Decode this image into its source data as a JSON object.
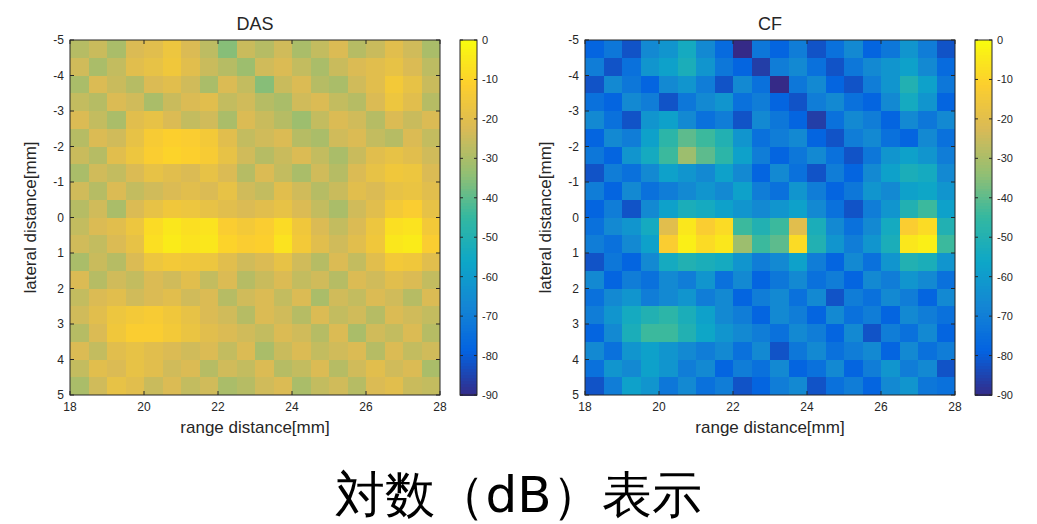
{
  "caption": "対数（dB）表示",
  "chart_data": [
    {
      "type": "heatmap",
      "title": "DAS",
      "x_label": "range distance[mm]",
      "y_label": "lateral distance[mm]",
      "xlim": [
        18,
        28
      ],
      "ylim": [
        -5,
        5
      ],
      "xticks": [
        18,
        20,
        22,
        24,
        26,
        28
      ],
      "yticks": [
        -5,
        -4,
        -3,
        -2,
        -1,
        0,
        1,
        2,
        3,
        4,
        5
      ],
      "color_range": [
        -90,
        0
      ],
      "color_ticks": [
        0,
        -10,
        -20,
        -30,
        -40,
        -50,
        -60,
        -70,
        -80,
        -90
      ],
      "x": [
        18.25,
        18.75,
        19.25,
        19.75,
        20.25,
        20.75,
        21.25,
        21.75,
        22.25,
        22.75,
        23.25,
        23.75,
        24.25,
        24.75,
        25.25,
        25.75,
        26.25,
        26.75,
        27.25,
        27.75
      ],
      "y": [
        -4.75,
        -4.25,
        -3.75,
        -3.25,
        -2.75,
        -2.25,
        -1.75,
        -1.25,
        -0.75,
        -0.25,
        0.25,
        0.75,
        1.25,
        1.75,
        2.25,
        2.75,
        3.25,
        3.75,
        4.25,
        4.75
      ],
      "values": [
        [
          -28,
          -25,
          -30,
          -22,
          -20,
          -16,
          -22,
          -27,
          -35,
          -25,
          -28,
          -24,
          -30,
          -26,
          -22,
          -28,
          -25,
          -20,
          -24,
          -30
        ],
        [
          -24,
          -30,
          -26,
          -20,
          -18,
          -15,
          -20,
          -25,
          -28,
          -32,
          -24,
          -22,
          -26,
          -30,
          -25,
          -22,
          -20,
          -18,
          -22,
          -27
        ],
        [
          -30,
          -22,
          -25,
          -28,
          -22,
          -20,
          -24,
          -30,
          -22,
          -26,
          -35,
          -25,
          -22,
          -28,
          -30,
          -24,
          -20,
          -14,
          -18,
          -25
        ],
        [
          -26,
          -28,
          -22,
          -24,
          -30,
          -25,
          -22,
          -20,
          -26,
          -24,
          -28,
          -30,
          -24,
          -22,
          -26,
          -28,
          -22,
          -16,
          -20,
          -28
        ],
        [
          -22,
          -26,
          -30,
          -20,
          -18,
          -22,
          -26,
          -24,
          -30,
          -22,
          -25,
          -28,
          -32,
          -26,
          -22,
          -24,
          -28,
          -22,
          -25,
          -22
        ],
        [
          -28,
          -22,
          -24,
          -18,
          -13,
          -11,
          -12,
          -14,
          -20,
          -26,
          -24,
          -22,
          -28,
          -30,
          -24,
          -22,
          -26,
          -28,
          -22,
          -26
        ],
        [
          -25,
          -28,
          -20,
          -16,
          -12,
          -10,
          -11,
          -13,
          -18,
          -24,
          -28,
          -25,
          -22,
          -26,
          -30,
          -25,
          -20,
          -18,
          -20,
          -24
        ],
        [
          -30,
          -24,
          -26,
          -22,
          -18,
          -20,
          -22,
          -18,
          -22,
          -28,
          -22,
          -26,
          -30,
          -24,
          -28,
          -22,
          -18,
          -15,
          -16,
          -22
        ],
        [
          -24,
          -28,
          -22,
          -26,
          -24,
          -22,
          -20,
          -22,
          -18,
          -24,
          -26,
          -20,
          -24,
          -28,
          -25,
          -20,
          -22,
          -18,
          -17,
          -20
        ],
        [
          -28,
          -24,
          -30,
          -22,
          -18,
          -15,
          -16,
          -18,
          -20,
          -22,
          -20,
          -18,
          -22,
          -26,
          -30,
          -24,
          -20,
          -14,
          -12,
          -18
        ],
        [
          -26,
          -22,
          -20,
          -16,
          -8,
          -5,
          -7,
          -6,
          -12,
          -14,
          -12,
          -8,
          -15,
          -22,
          -26,
          -22,
          -16,
          -7,
          -6,
          -14
        ],
        [
          -24,
          -26,
          -22,
          -18,
          -7,
          -4,
          -6,
          -5,
          -10,
          -12,
          -11,
          -6,
          -14,
          -20,
          -24,
          -20,
          -15,
          -5,
          -4,
          -12
        ],
        [
          -30,
          -25,
          -28,
          -22,
          -16,
          -14,
          -15,
          -16,
          -20,
          -24,
          -22,
          -18,
          -24,
          -28,
          -22,
          -26,
          -20,
          -14,
          -15,
          -20
        ],
        [
          -22,
          -28,
          -24,
          -26,
          -22,
          -24,
          -20,
          -26,
          -22,
          -28,
          -25,
          -22,
          -26,
          -24,
          -28,
          -22,
          -24,
          -20,
          -22,
          -26
        ],
        [
          -26,
          -22,
          -20,
          -24,
          -22,
          -20,
          -24,
          -22,
          -28,
          -24,
          -22,
          -26,
          -22,
          -30,
          -24,
          -26,
          -22,
          -24,
          -28,
          -22
        ],
        [
          -24,
          -20,
          -16,
          -14,
          -13,
          -15,
          -18,
          -22,
          -24,
          -28,
          -22,
          -24,
          -28,
          -22,
          -26,
          -24,
          -28,
          -22,
          -24,
          -26
        ],
        [
          -28,
          -22,
          -15,
          -12,
          -12,
          -14,
          -17,
          -20,
          -22,
          -24,
          -26,
          -22,
          -24,
          -28,
          -22,
          -30,
          -24,
          -26,
          -22,
          -28
        ],
        [
          -22,
          -26,
          -20,
          -18,
          -20,
          -22,
          -24,
          -22,
          -26,
          -22,
          -30,
          -25,
          -22,
          -26,
          -24,
          -22,
          -28,
          -22,
          -26,
          -24
        ],
        [
          -26,
          -20,
          -22,
          -18,
          -20,
          -24,
          -22,
          -28,
          -24,
          -26,
          -22,
          -28,
          -26,
          -22,
          -28,
          -24,
          -20,
          -24,
          -22,
          -30
        ],
        [
          -30,
          -24,
          -18,
          -20,
          -25,
          -22,
          -26,
          -24,
          -30,
          -28,
          -24,
          -22,
          -30,
          -26,
          -24,
          -28,
          -22,
          -20,
          -25,
          -26
        ]
      ]
    },
    {
      "type": "heatmap",
      "title": "CF",
      "x_label": "range distance[mm]",
      "y_label": "lateral distance[mm]",
      "xlim": [
        18,
        28
      ],
      "ylim": [
        -5,
        5
      ],
      "xticks": [
        18,
        20,
        22,
        24,
        26,
        28
      ],
      "yticks": [
        -5,
        -4,
        -3,
        -2,
        -1,
        0,
        1,
        2,
        3,
        4,
        5
      ],
      "color_range": [
        -90,
        0
      ],
      "color_ticks": [
        0,
        -10,
        -20,
        -30,
        -40,
        -50,
        -60,
        -70,
        -80,
        -90
      ],
      "x": [
        18.25,
        18.75,
        19.25,
        19.75,
        20.25,
        20.75,
        21.25,
        21.75,
        22.25,
        22.75,
        23.25,
        23.75,
        24.25,
        24.75,
        25.25,
        25.75,
        26.25,
        26.75,
        27.25,
        27.75
      ],
      "y": [
        -4.75,
        -4.25,
        -3.75,
        -3.25,
        -2.75,
        -2.25,
        -1.75,
        -1.25,
        -0.75,
        -0.25,
        0.25,
        0.75,
        1.25,
        1.75,
        2.25,
        2.75,
        3.25,
        3.75,
        4.25,
        4.75
      ],
      "values": [
        [
          -78,
          -72,
          -82,
          -66,
          -62,
          -54,
          -66,
          -76,
          -90,
          -72,
          -78,
          -70,
          -82,
          -74,
          -66,
          -78,
          -72,
          -62,
          -70,
          -82
        ],
        [
          -70,
          -82,
          -74,
          -62,
          -58,
          -52,
          -62,
          -72,
          -78,
          -86,
          -70,
          -66,
          -74,
          -82,
          -72,
          -66,
          -62,
          -58,
          -66,
          -76
        ],
        [
          -82,
          -66,
          -72,
          -78,
          -66,
          -62,
          -70,
          -82,
          -66,
          -74,
          -90,
          -72,
          -66,
          -78,
          -82,
          -70,
          -62,
          -50,
          -58,
          -72
        ],
        [
          -74,
          -78,
          -66,
          -70,
          -82,
          -72,
          -66,
          -62,
          -74,
          -70,
          -78,
          -82,
          -70,
          -66,
          -74,
          -78,
          -66,
          -54,
          -62,
          -78
        ],
        [
          -66,
          -74,
          -82,
          -62,
          -58,
          -66,
          -74,
          -70,
          -82,
          -66,
          -72,
          -78,
          -86,
          -74,
          -66,
          -70,
          -78,
          -66,
          -72,
          -66
        ],
        [
          -78,
          -66,
          -70,
          -58,
          -47,
          -40,
          -44,
          -50,
          -62,
          -74,
          -70,
          -66,
          -78,
          -82,
          -70,
          -66,
          -74,
          -78,
          -66,
          -74
        ],
        [
          -72,
          -78,
          -62,
          -54,
          -44,
          -32,
          -40,
          -47,
          -58,
          -70,
          -78,
          -72,
          -66,
          -74,
          -82,
          -72,
          -62,
          -58,
          -62,
          -70
        ],
        [
          -82,
          -70,
          -74,
          -66,
          -58,
          -62,
          -66,
          -58,
          -66,
          -78,
          -66,
          -74,
          -82,
          -70,
          -78,
          -66,
          -58,
          -52,
          -54,
          -66
        ],
        [
          -70,
          -78,
          -66,
          -74,
          -70,
          -66,
          -62,
          -66,
          -58,
          -70,
          -74,
          -62,
          -70,
          -78,
          -72,
          -62,
          -66,
          -58,
          -56,
          -62
        ],
        [
          -78,
          -70,
          -82,
          -66,
          -58,
          -52,
          -54,
          -58,
          -62,
          -66,
          -62,
          -58,
          -66,
          -74,
          -82,
          -70,
          -62,
          -50,
          -44,
          -58
        ],
        [
          -74,
          -66,
          -62,
          -54,
          -20,
          -5,
          -12,
          -8,
          -44,
          -50,
          -44,
          -20,
          -52,
          -66,
          -74,
          -66,
          -54,
          -12,
          -8,
          -50
        ],
        [
          -70,
          -74,
          -66,
          -58,
          -12,
          -3,
          -8,
          -5,
          -32,
          -44,
          -40,
          -8,
          -50,
          -62,
          -70,
          -62,
          -52,
          -5,
          -3,
          -44
        ],
        [
          -82,
          -72,
          -78,
          -66,
          -54,
          -50,
          -52,
          -54,
          -62,
          -70,
          -66,
          -58,
          -70,
          -78,
          -66,
          -74,
          -62,
          -50,
          -52,
          -62
        ],
        [
          -66,
          -78,
          -70,
          -74,
          -66,
          -70,
          -62,
          -74,
          -66,
          -78,
          -72,
          -66,
          -74,
          -70,
          -78,
          -66,
          -70,
          -62,
          -66,
          -74
        ],
        [
          -74,
          -66,
          -62,
          -70,
          -66,
          -62,
          -70,
          -66,
          -78,
          -70,
          -66,
          -74,
          -66,
          -82,
          -70,
          -74,
          -66,
          -70,
          -78,
          -66
        ],
        [
          -70,
          -62,
          -54,
          -50,
          -47,
          -52,
          -58,
          -66,
          -70,
          -78,
          -66,
          -70,
          -78,
          -66,
          -74,
          -70,
          -78,
          -66,
          -70,
          -74
        ],
        [
          -78,
          -66,
          -52,
          -44,
          -44,
          -50,
          -56,
          -62,
          -66,
          -70,
          -74,
          -66,
          -70,
          -78,
          -66,
          -82,
          -70,
          -74,
          -66,
          -78
        ],
        [
          -66,
          -74,
          -62,
          -58,
          -62,
          -66,
          -70,
          -66,
          -74,
          -66,
          -82,
          -72,
          -66,
          -74,
          -70,
          -66,
          -78,
          -66,
          -74,
          -70
        ],
        [
          -74,
          -62,
          -66,
          -58,
          -62,
          -70,
          -66,
          -78,
          -70,
          -74,
          -66,
          -78,
          -74,
          -66,
          -78,
          -70,
          -62,
          -70,
          -66,
          -82
        ],
        [
          -82,
          -70,
          -58,
          -62,
          -72,
          -66,
          -74,
          -70,
          -82,
          -78,
          -70,
          -66,
          -82,
          -74,
          -70,
          -78,
          -66,
          -62,
          -72,
          -74
        ]
      ]
    }
  ]
}
